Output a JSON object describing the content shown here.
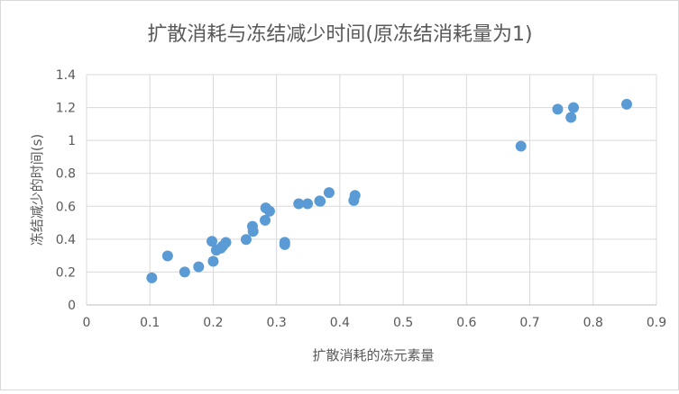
{
  "chart_data": {
    "type": "scatter",
    "title": "扩散消耗与冻结减少时间(原冻结消耗量为1)",
    "xlabel": "扩散消耗的冻元素量",
    "ylabel": "冻结减少的时间(s)",
    "xlim": [
      0,
      0.9
    ],
    "ylim": [
      0,
      1.4
    ],
    "x_ticks": [
      "0",
      "0.1",
      "0.2",
      "0.3",
      "0.4",
      "0.5",
      "0.6",
      "0.7",
      "0.8",
      "0.9"
    ],
    "y_ticks": [
      "0",
      "0.2",
      "0.4",
      "0.6",
      "0.8",
      "1",
      "1.2",
      "1.4"
    ],
    "grid": true,
    "legend": "none",
    "marker_color": "#5b9bd5",
    "series": [
      {
        "points": [
          [
            0.103,
            0.165
          ],
          [
            0.128,
            0.298
          ],
          [
            0.155,
            0.2
          ],
          [
            0.177,
            0.232
          ],
          [
            0.198,
            0.387
          ],
          [
            0.2,
            0.265
          ],
          [
            0.205,
            0.333
          ],
          [
            0.212,
            0.345
          ],
          [
            0.215,
            0.358
          ],
          [
            0.22,
            0.38
          ],
          [
            0.252,
            0.398
          ],
          [
            0.262,
            0.478
          ],
          [
            0.263,
            0.448
          ],
          [
            0.282,
            0.515
          ],
          [
            0.283,
            0.59
          ],
          [
            0.289,
            0.57
          ],
          [
            0.313,
            0.381
          ],
          [
            0.313,
            0.367
          ],
          [
            0.335,
            0.615
          ],
          [
            0.349,
            0.615
          ],
          [
            0.368,
            0.632
          ],
          [
            0.369,
            0.63
          ],
          [
            0.383,
            0.683
          ],
          [
            0.422,
            0.635
          ],
          [
            0.424,
            0.666
          ],
          [
            0.686,
            0.965
          ],
          [
            0.744,
            1.19
          ],
          [
            0.765,
            1.14
          ],
          [
            0.769,
            1.2
          ],
          [
            0.853,
            1.22
          ]
        ]
      }
    ]
  }
}
